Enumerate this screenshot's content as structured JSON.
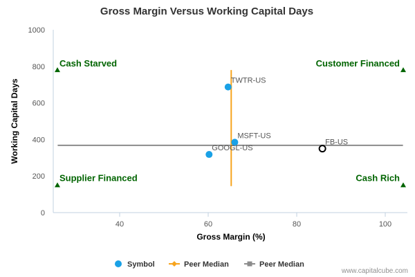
{
  "chart_data": {
    "type": "scatter",
    "title": "Gross Margin Versus Working Capital Days",
    "xlabel": "Gross Margin (%)",
    "ylabel": "Working Capital Days",
    "xlim": [
      25,
      105
    ],
    "ylim": [
      0,
      1000
    ],
    "xticks": [
      40,
      60,
      80,
      100
    ],
    "yticks": [
      0,
      200,
      400,
      600,
      800,
      1000
    ],
    "grid": false,
    "points": [
      {
        "label": "TWTR-US",
        "x": 64.5,
        "y": 687,
        "marker": "filled"
      },
      {
        "label": "MSFT-US",
        "x": 66,
        "y": 385,
        "marker": "filled"
      },
      {
        "label": "GOOGL-US",
        "x": 60.2,
        "y": 318,
        "marker": "filled"
      },
      {
        "label": "FB-US",
        "x": 85.8,
        "y": 350,
        "marker": "hollow"
      }
    ],
    "peer_median_x": {
      "value": 65.2,
      "y_range": [
        145,
        780
      ]
    },
    "peer_median_y": {
      "value": 368,
      "x_range": [
        26,
        104
      ]
    },
    "quadrants": [
      {
        "label": "Cash Starved",
        "corner": "top-left"
      },
      {
        "label": "Customer Financed",
        "corner": "top-right"
      },
      {
        "label": "Supplier Financed",
        "corner": "bottom-left"
      },
      {
        "label": "Cash Rich",
        "corner": "bottom-right"
      }
    ],
    "quadrant_marker_y": {
      "top": 780,
      "bottom": 150
    },
    "legend": {
      "position": "bottom-center",
      "entries": [
        {
          "label": "Symbol",
          "kind": "dot"
        },
        {
          "label": "Peer Median",
          "kind": "orange-line"
        },
        {
          "label": "Peer Median",
          "kind": "gray-line"
        }
      ]
    }
  },
  "colors": {
    "point": "#1aa1e6",
    "median_x": "#f7a41d",
    "median_y": "#8c8c8c",
    "quadrant_text": "#006400",
    "axis": "#c0d0e0"
  },
  "credit": "www.capitalcube.com"
}
